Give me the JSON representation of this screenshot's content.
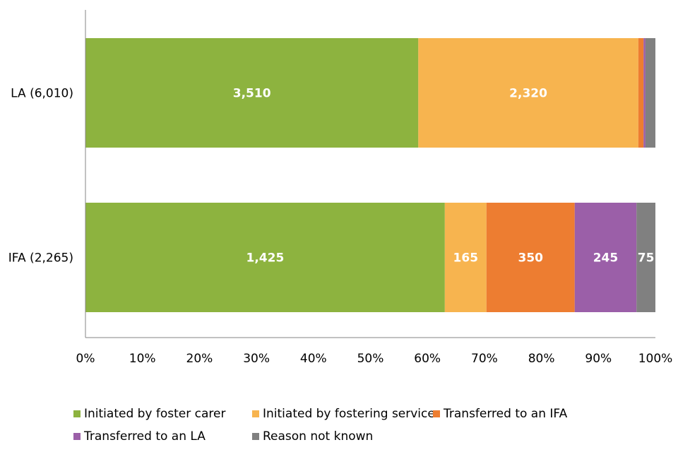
{
  "chart_data": {
    "type": "bar",
    "orientation": "horizontal",
    "stacked": "percent",
    "categories": [
      "LA (6,010)",
      "IFA (2,265)"
    ],
    "series": [
      {
        "name": "Initiated by foster carer",
        "values": [
          3510,
          1425
        ],
        "labels": [
          "3,510",
          "1,425"
        ],
        "color": "#8db33f"
      },
      {
        "name": "Initiated by fostering service",
        "values": [
          2320,
          165
        ],
        "labels": [
          "2,320",
          "165"
        ],
        "color": "#f7b44f"
      },
      {
        "name": "Transferred to an IFA",
        "values": [
          55,
          350
        ],
        "labels": [
          "",
          "350"
        ],
        "color": "#ed7d31"
      },
      {
        "name": "Transferred to an LA",
        "values": [
          20,
          245
        ],
        "labels": [
          "",
          "245"
        ],
        "color": "#9b5fa8"
      },
      {
        "name": "Reason not known",
        "values": [
          105,
          75
        ],
        "labels": [
          "",
          "75"
        ],
        "color": "#808080"
      }
    ],
    "xticks": [
      "0%",
      "10%",
      "20%",
      "30%",
      "40%",
      "50%",
      "60%",
      "70%",
      "80%",
      "90%",
      "100%"
    ],
    "xlim": [
      0,
      100
    ],
    "grid": false,
    "legend_position": "bottom",
    "title": "",
    "xlabel": "",
    "ylabel": ""
  }
}
